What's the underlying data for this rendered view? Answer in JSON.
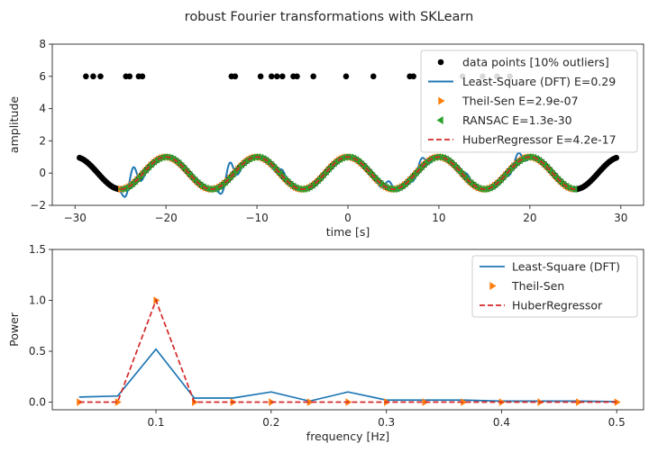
{
  "figure": {
    "title": "robust Fourier transformations with SKLearn"
  },
  "colors": {
    "data": "#000000",
    "lstsq": "#1f77b4",
    "theil": "#ff7f0e",
    "ransac": "#2ca02c",
    "huber": "#d62728"
  },
  "chart_data": [
    {
      "type": "line",
      "xlabel": "time [s]",
      "ylabel": "amplitude",
      "xlim": [
        -32.5,
        32.5
      ],
      "ylim": [
        -2,
        8
      ],
      "xticks": [
        -30,
        -20,
        -10,
        0,
        10,
        20,
        30
      ],
      "yticks": [
        -2,
        0,
        2,
        4,
        6,
        8
      ],
      "xtick_labels": [
        "−30",
        "−20",
        "−10",
        "0",
        "10",
        "20",
        "30"
      ],
      "ytick_labels": [
        "−2",
        "0",
        "2",
        "4",
        "6",
        "8"
      ],
      "legend_position": "top-right",
      "signal": {
        "period": 10,
        "phase": -2.5,
        "amplitude": 1
      },
      "data_x_range": [
        -29.5,
        29.5
      ],
      "data_step": 0.2,
      "fit_x_range": [
        -25,
        25
      ],
      "outliers": [
        {
          "x": -28.8,
          "y": 6
        },
        {
          "x": -28.0,
          "y": 6
        },
        {
          "x": -27.2,
          "y": 6
        },
        {
          "x": -24.4,
          "y": 6
        },
        {
          "x": -24.0,
          "y": 6
        },
        {
          "x": -23.0,
          "y": 6
        },
        {
          "x": -22.6,
          "y": 6
        },
        {
          "x": -12.8,
          "y": 6
        },
        {
          "x": -12.4,
          "y": 6
        },
        {
          "x": -9.6,
          "y": 6
        },
        {
          "x": -8.4,
          "y": 6
        },
        {
          "x": -7.8,
          "y": 6
        },
        {
          "x": -7.2,
          "y": 6
        },
        {
          "x": -6.0,
          "y": 6
        },
        {
          "x": -5.6,
          "y": 6
        },
        {
          "x": -3.8,
          "y": 6
        },
        {
          "x": -0.2,
          "y": 6
        },
        {
          "x": 2.8,
          "y": 6
        },
        {
          "x": 6.8,
          "y": 6
        },
        {
          "x": 7.2,
          "y": 6
        },
        {
          "x": 12.6,
          "y": 6
        },
        {
          "x": 14.8,
          "y": 6
        },
        {
          "x": 16.4,
          "y": 6
        },
        {
          "x": 17.8,
          "y": 6
        }
      ],
      "lstsq_ripple": [
        {
          "x": -23.7,
          "amp": 1.0
        },
        {
          "x": -13.1,
          "amp": 0.95
        },
        {
          "x": -7.3,
          "amp": 0.38
        },
        {
          "x": -4.3,
          "amp": 0.12
        },
        {
          "x": 4.4,
          "amp": 0.45
        },
        {
          "x": 8.0,
          "amp": 0.55
        },
        {
          "x": 13.0,
          "amp": 0.32
        },
        {
          "x": 18.6,
          "amp": 0.55
        }
      ],
      "series": [
        {
          "name": "data points [10% outliers]",
          "style": "points",
          "color_key": "data"
        },
        {
          "name": "Least-Square (DFT) E=0.29",
          "style": "line",
          "color_key": "lstsq"
        },
        {
          "name": "Theil-Sen E=2.9e-07",
          "style": "triangle-right",
          "color_key": "theil"
        },
        {
          "name": "RANSAC E=1.3e-30",
          "style": "triangle-left",
          "color_key": "ransac"
        },
        {
          "name": "HuberRegressor E=4.2e-17",
          "style": "dashed",
          "color_key": "huber"
        }
      ]
    },
    {
      "type": "line",
      "xlabel": "frequency [Hz]",
      "ylabel": "Power",
      "xlim": [
        0.01,
        0.5233
      ],
      "ylim": [
        -0.075,
        1.5
      ],
      "xticks": [
        0.1,
        0.2,
        0.3,
        0.4,
        0.5
      ],
      "yticks": [
        0.0,
        0.5,
        1.0,
        1.5
      ],
      "xtick_labels": [
        "0.1",
        "0.2",
        "0.3",
        "0.4",
        "0.5"
      ],
      "ytick_labels": [
        "0.0",
        "0.5",
        "1.0",
        "1.5"
      ],
      "legend_position": "top-right",
      "x": [
        0.0333,
        0.0667,
        0.1,
        0.1333,
        0.1667,
        0.2,
        0.2333,
        0.2667,
        0.3,
        0.3333,
        0.3667,
        0.4,
        0.4333,
        0.4667,
        0.5
      ],
      "series": [
        {
          "name": "Least-Square (DFT)",
          "style": "line",
          "color_key": "lstsq",
          "values": [
            0.05,
            0.06,
            0.52,
            0.04,
            0.04,
            0.1,
            0.01,
            0.1,
            0.02,
            0.02,
            0.02,
            0.01,
            0.01,
            0.01,
            0.005
          ]
        },
        {
          "name": "Theil-Sen",
          "style": "triangle-right",
          "color_key": "theil",
          "values": [
            0.0,
            0.0,
            1.0,
            0.0,
            0.0,
            0.0,
            0.0,
            0.0,
            0.0,
            0.0,
            0.0,
            0.0,
            0.0,
            0.0,
            0.0
          ]
        },
        {
          "name": "HuberRegressor",
          "style": "dashed",
          "color_key": "huber",
          "values": [
            0.0,
            0.0,
            1.0,
            0.0,
            0.0,
            0.0,
            0.0,
            0.0,
            0.0,
            0.0,
            0.0,
            0.0,
            0.0,
            0.0,
            0.0
          ]
        }
      ]
    }
  ]
}
